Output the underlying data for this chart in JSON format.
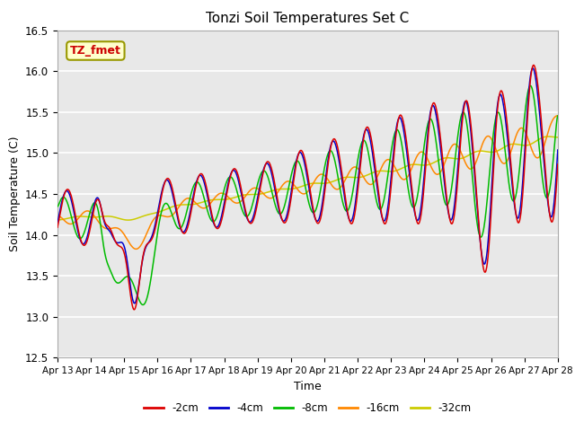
{
  "title": "Tonzi Soil Temperatures Set C",
  "xlabel": "Time",
  "ylabel": "Soil Temperature (C)",
  "ylim": [
    12.5,
    16.5
  ],
  "bg_color": "#e8e8e8",
  "annotation_text": "TZ_fmet",
  "annotation_bg": "#ffffcc",
  "annotation_border": "#999900",
  "colors": {
    "-2cm": "#dd0000",
    "-4cm": "#0000cc",
    "-8cm": "#00bb00",
    "-16cm": "#ff8800",
    "-32cm": "#cccc00"
  },
  "tick_labels": [
    "Apr 13",
    "Apr 14",
    "Apr 15",
    "Apr 16",
    "Apr 17",
    "Apr 18",
    "Apr 19",
    "Apr 20",
    "Apr 21",
    "Apr 22",
    "Apr 23",
    "Apr 24",
    "Apr 25",
    "Apr 26",
    "Apr 27",
    "Apr 28"
  ],
  "yticks": [
    12.5,
    13.0,
    13.5,
    14.0,
    14.5,
    15.0,
    15.5,
    16.0,
    16.5
  ]
}
